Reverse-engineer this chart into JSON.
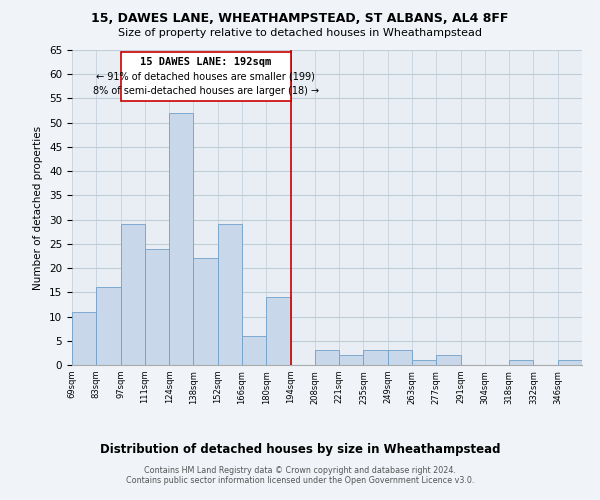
{
  "title": "15, DAWES LANE, WHEATHAMPSTEAD, ST ALBANS, AL4 8FF",
  "subtitle": "Size of property relative to detached houses in Wheathampstead",
  "xlabel": "Distribution of detached houses by size in Wheathampstead",
  "ylabel": "Number of detached properties",
  "bin_labels": [
    "69sqm",
    "83sqm",
    "97sqm",
    "111sqm",
    "124sqm",
    "138sqm",
    "152sqm",
    "166sqm",
    "180sqm",
    "194sqm",
    "208sqm",
    "221sqm",
    "235sqm",
    "249sqm",
    "263sqm",
    "277sqm",
    "291sqm",
    "304sqm",
    "318sqm",
    "332sqm",
    "346sqm"
  ],
  "bar_values": [
    11,
    16,
    29,
    24,
    52,
    22,
    29,
    6,
    14,
    0,
    3,
    2,
    3,
    3,
    1,
    2,
    0,
    0,
    1,
    0,
    1
  ],
  "bar_color": "#c8d8ea",
  "bar_edge_color": "#6fa0c8",
  "ylim": [
    0,
    65
  ],
  "yticks": [
    0,
    5,
    10,
    15,
    20,
    25,
    30,
    35,
    40,
    45,
    50,
    55,
    60,
    65
  ],
  "marker_line_color": "#cc0000",
  "annotation_text_line1": "15 DAWES LANE: 192sqm",
  "annotation_text_line2": "← 91% of detached houses are smaller (199)",
  "annotation_text_line3": "8% of semi-detached houses are larger (18) →",
  "footer_line1": "Contains HM Land Registry data © Crown copyright and database right 2024.",
  "footer_line2": "Contains public sector information licensed under the Open Government Licence v3.0.",
  "bg_color": "#f0f4f8",
  "plot_bg_color": "#e8eef4",
  "grid_color": "#c0ccd8"
}
